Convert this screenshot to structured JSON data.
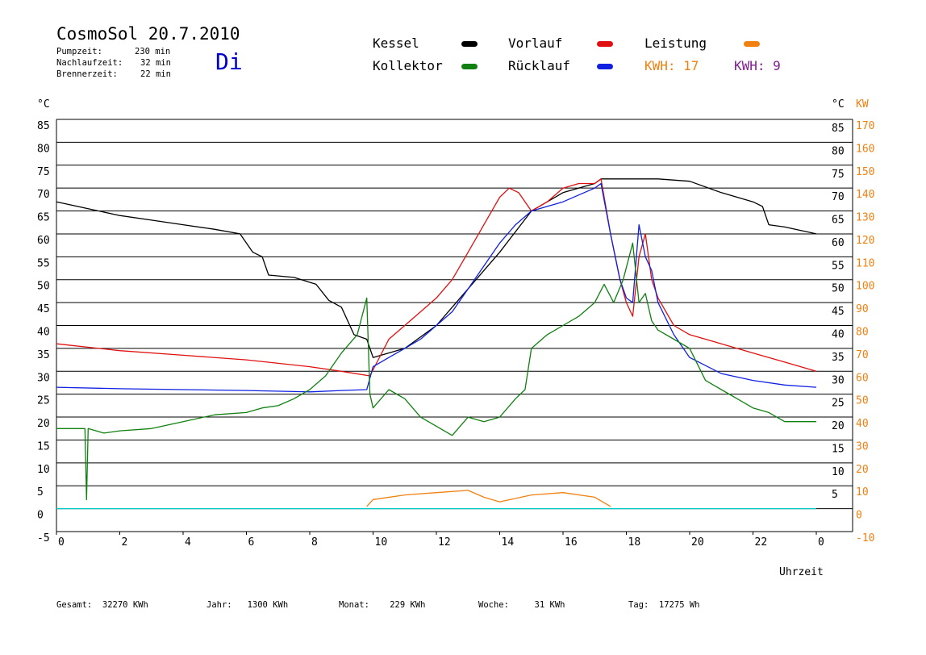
{
  "header": {
    "title": "CosmoSol 20.7.2010",
    "day": "Di",
    "stats": [
      {
        "label": "Pumpzeit:",
        "value": "230 min"
      },
      {
        "label": "Nachlaufzeit:",
        "value": "32 min"
      },
      {
        "label": "Brennerzeit:",
        "value": "22 min"
      }
    ]
  },
  "legend": {
    "kessel": {
      "label": "Kessel",
      "color": "#000000"
    },
    "vorlauf": {
      "label": "Vorlauf",
      "color": "#e01010"
    },
    "leistung": {
      "label": "Leistung",
      "color": "#f08010"
    },
    "kollektor": {
      "label": "Kollektor",
      "color": "#108010"
    },
    "ruecklauf": {
      "label": "Rücklauf",
      "color": "#1020e0"
    },
    "kwh_orange": "KWH: 17",
    "kwh_purple": "KWH: 9",
    "kwh_orange_color": "#f08010",
    "kwh_purple_color": "#802090"
  },
  "footer": {
    "gesamt": "Gesamt:  32270 KWh",
    "jahr": "Jahr:   1300 KWh",
    "monat": "Monat:    229 KWh",
    "woche": "Woche:     31 KWh",
    "tag": "Tag:  17275 Wh"
  },
  "chart_data": {
    "type": "line",
    "xlabel": "Uhrzeit",
    "ylabel_left": "°C",
    "ylabel_right_1": "°C",
    "ylabel_right_2": "KW",
    "xlim": [
      0,
      24
    ],
    "ylim": [
      -5,
      85
    ],
    "x_ticks": [
      "0",
      "2",
      "4",
      "6",
      "8",
      "10",
      "12",
      "14",
      "16",
      "18",
      "20",
      "22",
      "0"
    ],
    "y_ticks_left": [
      "85",
      "80",
      "75",
      "70",
      "65",
      "60",
      "55",
      "50",
      "45",
      "40",
      "35",
      "30",
      "25",
      "20",
      "15",
      "10",
      "5",
      "0",
      "-5"
    ],
    "y_ticks_right_c": [
      "85",
      "80",
      "75",
      "70",
      "65",
      "60",
      "55",
      "50",
      "45",
      "40",
      "35",
      "30",
      "25",
      "20",
      "15",
      "10",
      "5"
    ],
    "y_ticks_right_kw": [
      "170",
      "160",
      "150",
      "140",
      "130",
      "120",
      "110",
      "100",
      "90",
      "80",
      "70",
      "60",
      "50",
      "40",
      "30",
      "20",
      "10",
      "0",
      "-10"
    ],
    "grid": true,
    "series": [
      {
        "name": "Kessel",
        "color": "#000000",
        "x": [
          0,
          1,
          2,
          3,
          4,
          5,
          5.8,
          6.2,
          6.5,
          6.7,
          7.5,
          8.2,
          8.6,
          9.0,
          9.4,
          9.8,
          10.0,
          11.0,
          12.0,
          13.0,
          14.0,
          15.0,
          16.0,
          17.0,
          17.2,
          18.0,
          19.0,
          20.0,
          21.0,
          22.0,
          22.3,
          22.5,
          23.0,
          24.0
        ],
        "y": [
          67,
          65.5,
          64,
          63,
          62,
          61,
          60,
          56,
          55,
          51,
          50.5,
          49,
          45.5,
          44,
          38,
          37,
          33,
          35,
          40,
          48,
          56,
          65,
          69,
          71,
          72,
          72,
          72,
          71.5,
          69,
          67,
          66,
          62,
          61.5,
          60
        ]
      },
      {
        "name": "Vorlauf",
        "color": "#e01010",
        "x": [
          0,
          2,
          4,
          6,
          8,
          9,
          9.9,
          10.5,
          11,
          11.5,
          12,
          12.5,
          13,
          13.5,
          14,
          14.3,
          14.6,
          15,
          15.5,
          16,
          16.5,
          17,
          17.2,
          17.5,
          17.8,
          18,
          18.2,
          18.4,
          18.6,
          18.8,
          19,
          19.5,
          20,
          21,
          22,
          23,
          24
        ],
        "y": [
          36,
          34.5,
          33.5,
          32.5,
          31,
          30,
          29,
          37,
          40,
          43,
          46,
          50,
          56,
          62,
          68,
          70,
          69,
          65,
          67,
          70,
          71,
          71,
          72,
          60,
          50,
          45,
          42,
          55,
          60,
          50,
          46,
          40,
          38,
          36,
          34,
          32,
          30
        ]
      },
      {
        "name": "Rücklauf",
        "color": "#1020e0",
        "x": [
          0,
          2,
          4,
          6,
          8,
          9,
          9.8,
          10,
          10.5,
          11,
          11.5,
          12,
          12.5,
          13,
          13.5,
          14,
          14.5,
          15,
          15.5,
          16,
          16.5,
          17,
          17.2,
          17.5,
          17.8,
          18,
          18.2,
          18.4,
          18.6,
          18.8,
          19,
          19.5,
          20,
          21,
          22,
          23,
          24
        ],
        "y": [
          26.5,
          26.2,
          26,
          25.8,
          25.5,
          25.8,
          26,
          31,
          33,
          35,
          37,
          40,
          43,
          48,
          53,
          58,
          62,
          65,
          66,
          67,
          68.5,
          70,
          71,
          60,
          50,
          46,
          45,
          62,
          55,
          52,
          45,
          38,
          33,
          29.5,
          28,
          27,
          26.5
        ]
      },
      {
        "name": "Kollektor",
        "color": "#108010",
        "x": [
          0,
          0.9,
          0.95,
          1.0,
          1.5,
          2,
          3,
          4,
          5,
          6,
          6.5,
          7,
          7.5,
          8,
          8.5,
          9,
          9.5,
          9.8,
          9.9,
          10,
          10.5,
          11,
          11.5,
          12,
          12.5,
          13,
          13.5,
          14,
          14.5,
          14.8,
          15,
          15.5,
          16,
          16.5,
          17,
          17.3,
          17.6,
          17.9,
          18.2,
          18.4,
          18.6,
          18.8,
          19,
          19.5,
          20,
          20.5,
          21,
          21.5,
          22,
          22.5,
          23,
          24
        ],
        "y": [
          17.5,
          17.5,
          2,
          17.5,
          16.5,
          17,
          17.5,
          19,
          20.5,
          21,
          22,
          22.5,
          24,
          26,
          29,
          34,
          38,
          46,
          25,
          22,
          26,
          24,
          20,
          18,
          16,
          20,
          19,
          20,
          24,
          26,
          35,
          38,
          40,
          42,
          45,
          49,
          45,
          50,
          58,
          45,
          47,
          41,
          39,
          37,
          35,
          28,
          26,
          24,
          22,
          21,
          19,
          19
        ]
      },
      {
        "name": "Leistung",
        "color": "#f08010",
        "x": [
          9.8,
          10,
          11,
          12,
          13,
          13.5,
          14,
          15,
          16,
          17,
          17.5
        ],
        "y": [
          0.5,
          2,
          3,
          3.5,
          4,
          2.5,
          1.5,
          3,
          3.5,
          2.5,
          0.5
        ]
      }
    ]
  }
}
